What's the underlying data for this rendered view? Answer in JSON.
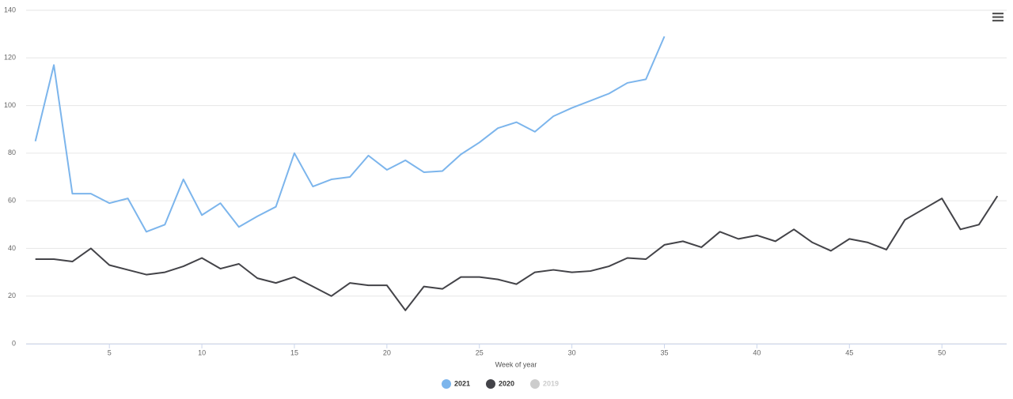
{
  "chart_data": {
    "type": "line",
    "xlabel": "Week of year",
    "x": [
      1,
      2,
      3,
      4,
      5,
      6,
      7,
      8,
      9,
      10,
      11,
      12,
      13,
      14,
      15,
      16,
      17,
      18,
      19,
      20,
      21,
      22,
      23,
      24,
      25,
      26,
      27,
      28,
      29,
      30,
      31,
      32,
      33,
      34,
      35,
      36,
      37,
      38,
      39,
      40,
      41,
      42,
      43,
      44,
      45,
      46,
      47,
      48,
      49,
      50,
      51,
      52,
      53
    ],
    "series": [
      {
        "name": "2021",
        "color": "#7cb5ec",
        "values": [
          85,
          117,
          63,
          63,
          59,
          61,
          47,
          50,
          69,
          54,
          59,
          49,
          53.5,
          57.5,
          80,
          66,
          69,
          70,
          79,
          73,
          77,
          72,
          72.5,
          79.5,
          84.5,
          90.5,
          93,
          89,
          95.5,
          99,
          102,
          105,
          109.5,
          111,
          129,
          null,
          null,
          null,
          null,
          null,
          null,
          null,
          null,
          null,
          null,
          null,
          null,
          null,
          null,
          null,
          null,
          null,
          null
        ]
      },
      {
        "name": "2020",
        "color": "#434348",
        "values": [
          35.5,
          35.5,
          34.5,
          40,
          33,
          31,
          29,
          30,
          32.5,
          36,
          31.5,
          33.5,
          27.5,
          25.5,
          28,
          24,
          20,
          25.5,
          24.5,
          24.5,
          14,
          24,
          23,
          28,
          28,
          27,
          25,
          30,
          31,
          30,
          30.5,
          32.5,
          36,
          35.5,
          41.5,
          43,
          40.5,
          47,
          44,
          45.5,
          43,
          48,
          42.5,
          39,
          44,
          42.5,
          39.5,
          52,
          56.5,
          61,
          48,
          50,
          62
        ]
      },
      {
        "name": "2019",
        "color": "#cccccc",
        "visible": false
      }
    ],
    "xlim": [
      0.5,
      53.5
    ],
    "xticks": [
      5,
      10,
      15,
      20,
      25,
      30,
      35,
      40,
      45,
      50
    ],
    "ylim": [
      0,
      140
    ],
    "yticks": [
      0,
      20,
      40,
      60,
      80,
      100,
      120,
      140
    ],
    "grid": true,
    "legend": "bottom"
  }
}
